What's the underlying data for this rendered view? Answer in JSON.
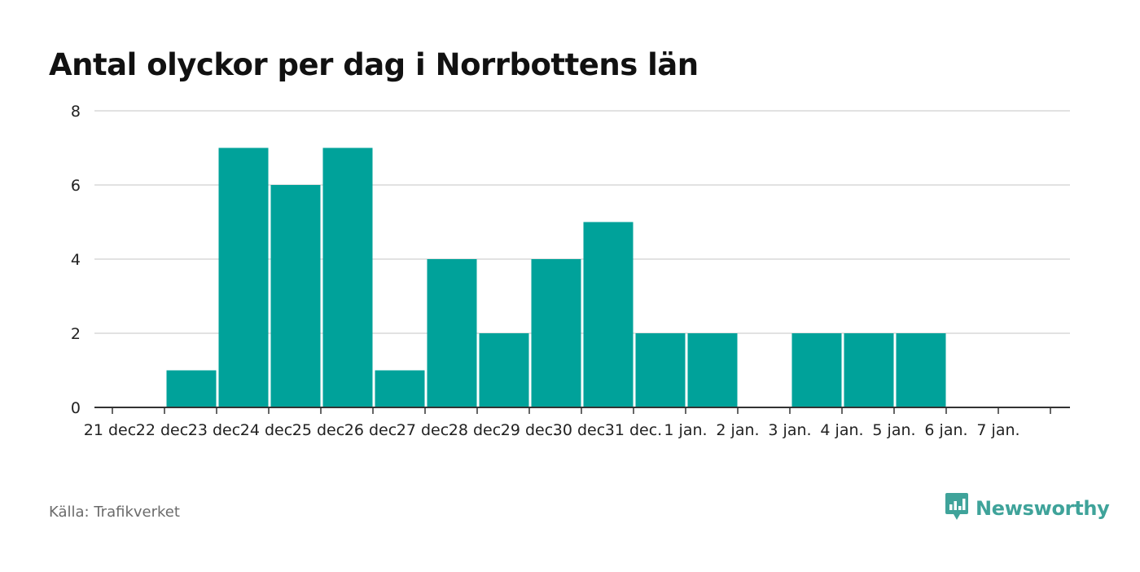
{
  "title": "Antal olyckor per dag i Norrbottens län",
  "source": "Källa: Trafikverket",
  "brand": "Newsworthy",
  "colors": {
    "bar": "#00a29a",
    "grid": "#d9d9d9",
    "axis": "#333333",
    "brand": "#3fa39a"
  },
  "chart_data": {
    "type": "bar",
    "title": "Antal olyckor per dag i Norrbottens län",
    "xlabel": "",
    "ylabel": "",
    "categories": [
      "21 dec.",
      "22 dec.",
      "23 dec.",
      "24 dec.",
      "25 dec.",
      "26 dec.",
      "27 dec.",
      "28 dec.",
      "29 dec.",
      "30 dec.",
      "31 dec.",
      "1 jan.",
      "2 jan.",
      "3 jan.",
      "4 jan.",
      "5 jan.",
      "6 jan.",
      "7 jan."
    ],
    "values": [
      0,
      1,
      7,
      6,
      7,
      1,
      4,
      2,
      4,
      5,
      2,
      2,
      0,
      2,
      2,
      2,
      0,
      0
    ],
    "ylim": [
      0,
      8
    ],
    "yticks": [
      0,
      2,
      4,
      6,
      8
    ],
    "grid": true,
    "legend": "none"
  }
}
